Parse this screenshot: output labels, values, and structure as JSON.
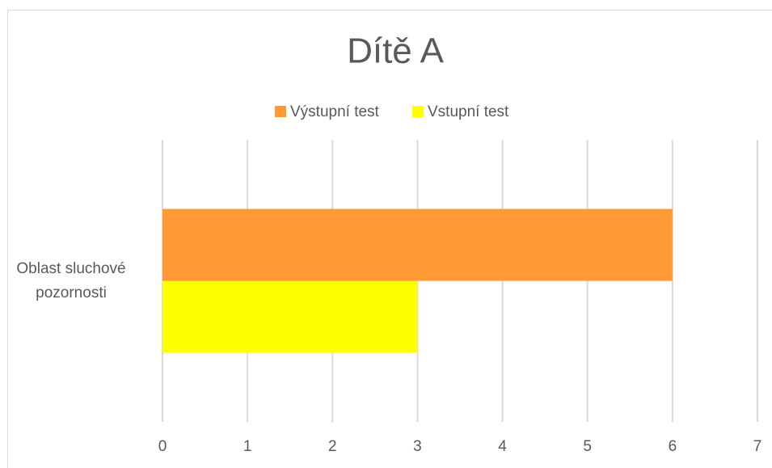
{
  "chart_data": {
    "type": "hbar",
    "title": "Dítě A",
    "categories": [
      "Oblast sluchové pozornosti"
    ],
    "series": [
      {
        "name": "Výstupní test",
        "color": "#FF9933",
        "values": [
          6
        ]
      },
      {
        "name": "Vstupní test",
        "color": "#FFFF00",
        "values": [
          3
        ]
      }
    ],
    "xlim": [
      0,
      7
    ],
    "xticks": [
      0,
      1,
      2,
      3,
      4,
      5,
      6,
      7
    ],
    "grid": true,
    "legend": "top"
  }
}
